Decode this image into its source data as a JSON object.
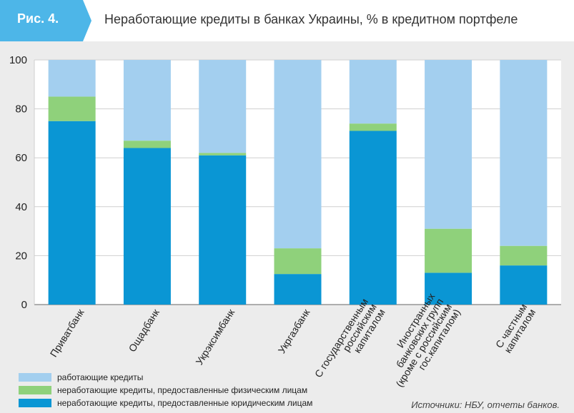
{
  "header": {
    "tag": "Рис. 4.",
    "title": "Неработающие кредиты в банках Украины, % в кредитном портфеле",
    "tag_color": "#4db6e8"
  },
  "source": "Источники: НБУ, отчеты банков.",
  "colors": {
    "performing": "#a3cfef",
    "npl_individuals": "#8fd17b",
    "npl_legal": "#0a96d4",
    "panel": "#ececec"
  },
  "chart_data": {
    "type": "bar",
    "stacked": true,
    "categories": [
      [
        "Приватбанк"
      ],
      [
        "Ощадбанк"
      ],
      [
        "Укрэксимбанк"
      ],
      [
        "Укргазбанк"
      ],
      [
        "С государственным",
        "российским",
        "капиталом"
      ],
      [
        "Иностранных",
        "банковских групп",
        "(кроме с российским",
        "гос.капиталом)"
      ],
      [
        "С частным",
        "капиталом"
      ]
    ],
    "series": [
      {
        "name": "неработающие кредиты, предоставленные юридическим лицам",
        "color": "#0a96d4",
        "values": [
          75,
          64,
          61,
          12.5,
          71,
          13,
          16
        ]
      },
      {
        "name": "неработающие кредиты, предоставленные физическим лицам",
        "color": "#8fd17b",
        "values": [
          10,
          3,
          1,
          10.5,
          3,
          18,
          8
        ]
      },
      {
        "name": "работающие кредиты",
        "color": "#a3cfef",
        "values": [
          15,
          33,
          38,
          77,
          26,
          69,
          76
        ]
      }
    ],
    "legend_order": [
      2,
      1,
      0
    ],
    "ylim": [
      0,
      100
    ],
    "yticks": [
      0,
      20,
      40,
      60,
      80,
      100
    ],
    "grid": true,
    "legend_position": "bottom-left"
  }
}
